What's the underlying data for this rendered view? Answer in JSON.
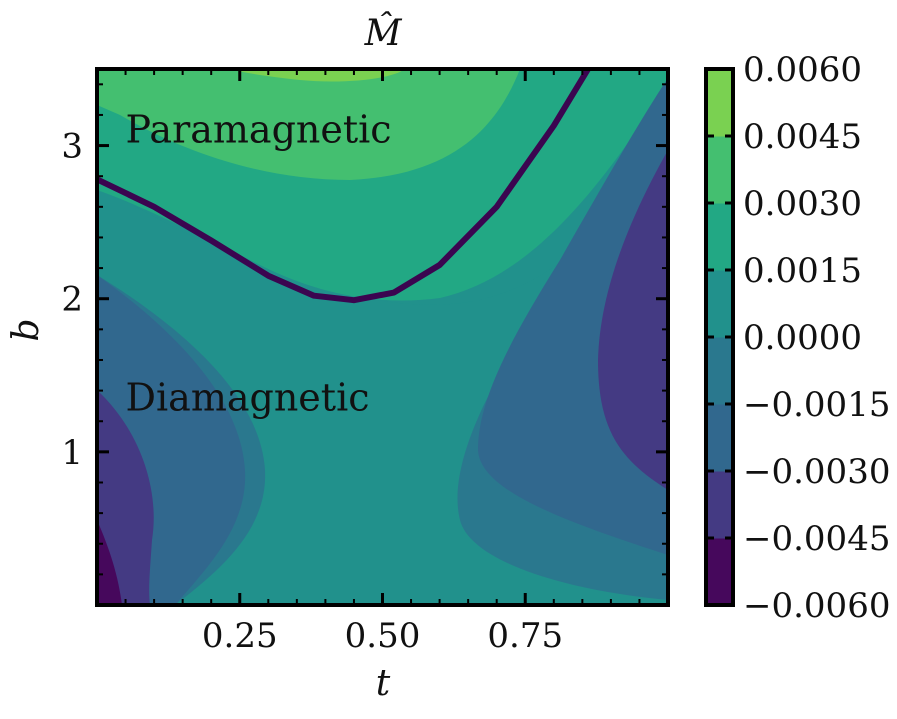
{
  "chart_data": {
    "type": "contour",
    "title": "M̂",
    "xlabel": "t",
    "ylabel": "b",
    "xlim": [
      0.0,
      1.0
    ],
    "ylim": [
      0.0,
      3.5
    ],
    "x_ticks": [
      {
        "value": 0.25,
        "label": "0.25"
      },
      {
        "value": 0.5,
        "label": "0.50"
      },
      {
        "value": 0.75,
        "label": "0.75"
      }
    ],
    "y_ticks": [
      {
        "value": 1,
        "label": "1"
      },
      {
        "value": 2,
        "label": "2"
      },
      {
        "value": 3,
        "label": "3"
      }
    ],
    "colorbar": {
      "levels": [
        -0.006,
        -0.0045,
        -0.003,
        -0.0015,
        0.0,
        0.0015,
        0.003,
        0.0045,
        0.006
      ],
      "labels": [
        "−0.0060",
        "−0.0045",
        "−0.0030",
        "−0.0015",
        "0.0000",
        "0.0015",
        "0.0030",
        "0.0045",
        "0.0060"
      ],
      "colors": [
        "#46085c",
        "#443a83",
        "#31688e",
        "#2a788e",
        "#21918c",
        "#22a884",
        "#44bf70",
        "#7ad151",
        "#d8e219"
      ]
    },
    "zero_contour": {
      "color": "#3b0550",
      "t": [
        0.0,
        0.1,
        0.2,
        0.3,
        0.38,
        0.45,
        0.52,
        0.6,
        0.7,
        0.8,
        0.86
      ],
      "b": [
        2.78,
        2.6,
        2.38,
        2.15,
        2.02,
        1.99,
        2.04,
        2.22,
        2.6,
        3.13,
        3.5
      ]
    },
    "annotations": [
      {
        "text": "Paramagnetic",
        "t": 0.05,
        "b": 3.1
      },
      {
        "text": "Diamagnetic",
        "t": 0.05,
        "b": 1.35
      }
    ]
  }
}
